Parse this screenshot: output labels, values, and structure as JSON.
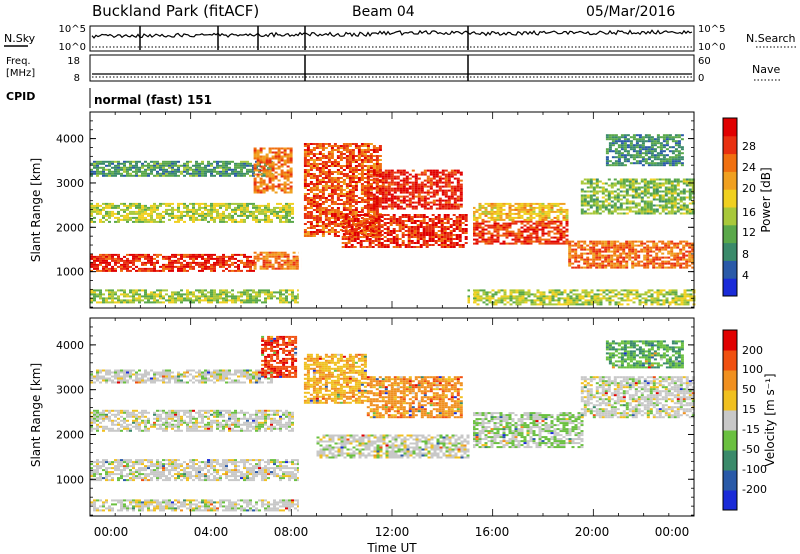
{
  "header": {
    "title": "Buckland Park (fitACF)",
    "beam": "Beam 04",
    "date": "05/Mar/2016"
  },
  "status": {
    "nsky_label": "N.Sky",
    "nsky_ticks": [
      "10^5",
      "10^0"
    ],
    "nsearch_label": "N.Search",
    "nsearch_ticks": [
      "10^5",
      "10^0"
    ],
    "freq_label": "Freq.",
    "freq_unit": "[MHz]",
    "freq_ticks": [
      "18",
      "8"
    ],
    "nave_label": "Nave",
    "nave_ticks": [
      "60",
      "0"
    ],
    "cpid_label": "CPID",
    "cpid_value": "normal (fast) 151"
  },
  "panels": {
    "power": {
      "ylabel": "Slant Range [km]",
      "yticks": [
        "4000",
        "3000",
        "2000",
        "1000"
      ],
      "colorbar_label": "Power [dB]",
      "colorbar_ticks": [
        "28",
        "24",
        "20",
        "16",
        "12",
        "8",
        "4"
      ],
      "colors": [
        "#1a2bd8",
        "#2a5aa8",
        "#3a8a6a",
        "#5aa84a",
        "#a8c83a",
        "#f0d020",
        "#f0a020",
        "#f07010",
        "#e83010",
        "#e00000"
      ]
    },
    "velocity": {
      "ylabel": "Slant Range [km]",
      "yticks": [
        "4000",
        "3000",
        "2000",
        "1000"
      ],
      "colorbar_label": "Velocity [m s⁻¹]",
      "colorbar_ticks": [
        "200",
        "100",
        "50",
        "15",
        "-15",
        "-50",
        "-100",
        "-200"
      ],
      "colors": [
        "#1a2bd8",
        "#2a5aa8",
        "#3a8a6a",
        "#6ac040",
        "#c8c8c8",
        "#f0c020",
        "#f09020",
        "#f05010",
        "#e00000"
      ]
    }
  },
  "xaxis": {
    "label": "Time UT",
    "ticks": [
      "00:00",
      "04:00",
      "08:00",
      "12:00",
      "16:00",
      "20:00",
      "00:00"
    ]
  },
  "chart_data": [
    {
      "type": "heatmap",
      "title": "Power [dB]",
      "xlabel": "Time UT",
      "ylabel": "Slant Range [km]",
      "xlim": [
        0,
        24
      ],
      "ylim": [
        180,
        4600
      ],
      "zlim": [
        0,
        30
      ],
      "bands": [
        {
          "t0": 0,
          "t1": 6.5,
          "r0": 1000,
          "r1": 1400,
          "value": 26
        },
        {
          "t0": 6.5,
          "t1": 8.3,
          "r0": 1050,
          "r1": 1450,
          "value": 22
        },
        {
          "t0": 0,
          "t1": 8.0,
          "r0": 2100,
          "r1": 2550,
          "value": 14
        },
        {
          "t0": 0,
          "t1": 7.2,
          "r0": 3150,
          "r1": 3500,
          "value": 9
        },
        {
          "t0": 0,
          "t1": 8.3,
          "r0": 300,
          "r1": 600,
          "value": 13
        },
        {
          "t0": 6.5,
          "t1": 8.0,
          "r0": 2800,
          "r1": 3800,
          "value": 22
        },
        {
          "t0": 8.5,
          "t1": 11.5,
          "r0": 1800,
          "r1": 3900,
          "value": 24
        },
        {
          "t0": 10.0,
          "t1": 15.0,
          "r0": 1550,
          "r1": 2300,
          "value": 26
        },
        {
          "t0": 11.0,
          "t1": 14.8,
          "r0": 2400,
          "r1": 3300,
          "value": 27
        },
        {
          "t0": 15.2,
          "t1": 19.0,
          "r0": 1650,
          "r1": 2150,
          "value": 25
        },
        {
          "t0": 15.2,
          "t1": 19.0,
          "r0": 2150,
          "r1": 2550,
          "value": 18
        },
        {
          "t0": 19.0,
          "t1": 24.0,
          "r0": 1100,
          "r1": 1700,
          "value": 23
        },
        {
          "t0": 19.5,
          "t1": 24.0,
          "r0": 2300,
          "r1": 3100,
          "value": 12
        },
        {
          "t0": 20.5,
          "t1": 23.5,
          "r0": 3400,
          "r1": 4100,
          "value": 8
        },
        {
          "t0": 15.0,
          "t1": 24.0,
          "r0": 250,
          "r1": 600,
          "value": 14
        }
      ]
    },
    {
      "type": "heatmap",
      "title": "Velocity [m s⁻¹]",
      "xlabel": "Time UT",
      "ylabel": "Slant Range [km]",
      "xlim": [
        0,
        24
      ],
      "ylim": [
        180,
        4600
      ],
      "zlim": [
        -200,
        200
      ],
      "bands": [
        {
          "t0": 0,
          "t1": 8.3,
          "r0": 1000,
          "r1": 1450,
          "value": 0
        },
        {
          "t0": 0,
          "t1": 8.0,
          "r0": 2100,
          "r1": 2550,
          "value": 0
        },
        {
          "t0": 0,
          "t1": 7.2,
          "r0": 3150,
          "r1": 3450,
          "value": 0
        },
        {
          "t0": 0,
          "t1": 8.3,
          "r0": 300,
          "r1": 550,
          "value": 0
        },
        {
          "t0": 6.8,
          "t1": 8.2,
          "r0": 3300,
          "r1": 4200,
          "value": 150
        },
        {
          "t0": 8.5,
          "t1": 11.0,
          "r0": 2700,
          "r1": 3800,
          "value": 60
        },
        {
          "t0": 11.0,
          "t1": 14.8,
          "r0": 2400,
          "r1": 3300,
          "value": 90
        },
        {
          "t0": 9.0,
          "t1": 15.0,
          "r0": 1500,
          "r1": 2000,
          "value": 0
        },
        {
          "t0": 15.2,
          "t1": 19.5,
          "r0": 1700,
          "r1": 2500,
          "value": -20
        },
        {
          "t0": 19.5,
          "t1": 24.0,
          "r0": 2400,
          "r1": 3300,
          "value": 0
        },
        {
          "t0": 20.5,
          "t1": 23.5,
          "r0": 3500,
          "r1": 4100,
          "value": -60
        }
      ]
    }
  ]
}
